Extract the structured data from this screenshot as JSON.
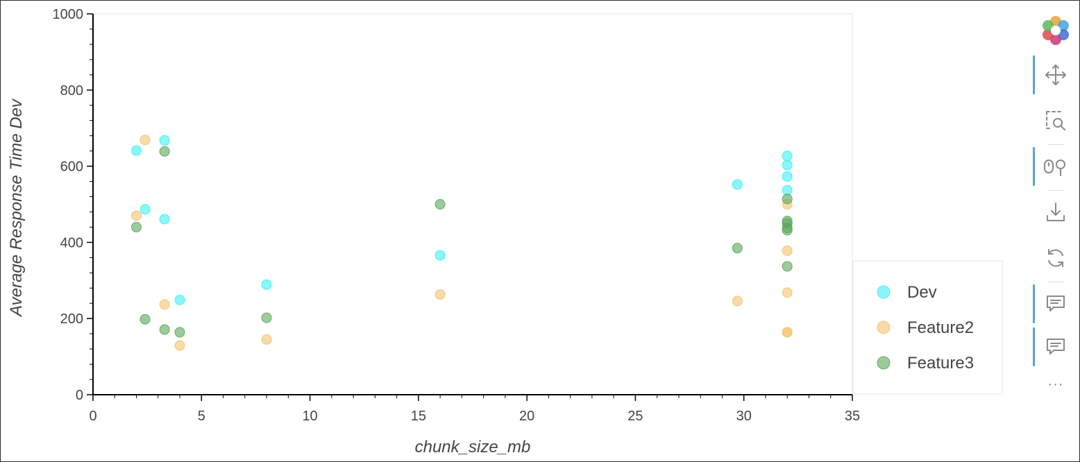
{
  "chart_data": {
    "type": "scatter",
    "title": "",
    "xlabel": "chunk_size_mb",
    "ylabel": "Average Response Time Dev",
    "xlim": [
      0,
      35
    ],
    "ylim": [
      0,
      1000
    ],
    "x_ticks": [
      "0",
      "5",
      "10",
      "15",
      "20",
      "25",
      "30",
      "35"
    ],
    "y_ticks": [
      "0",
      "200",
      "400",
      "600",
      "800",
      "1000"
    ],
    "grid": false,
    "legend_position": "bottom-right outside plot",
    "series": [
      {
        "name": "Dev",
        "color": "#3ef0f4",
        "points": [
          [
            2,
            641
          ],
          [
            2.4,
            487
          ],
          [
            3.3,
            668
          ],
          [
            3.3,
            461
          ],
          [
            4,
            249
          ],
          [
            8,
            289
          ],
          [
            16,
            366
          ],
          [
            29.7,
            552
          ],
          [
            32,
            627
          ],
          [
            32,
            603
          ],
          [
            32,
            573
          ],
          [
            32,
            537
          ]
        ]
      },
      {
        "name": "Feature2",
        "color": "#f3c36e",
        "points": [
          [
            2,
            470
          ],
          [
            2.4,
            669
          ],
          [
            3.3,
            237
          ],
          [
            4,
            129
          ],
          [
            8,
            145
          ],
          [
            16,
            263
          ],
          [
            29.7,
            246
          ],
          [
            32,
            500
          ],
          [
            32,
            378
          ],
          [
            32,
            268
          ],
          [
            32,
            164
          ],
          [
            32,
            164
          ]
        ]
      },
      {
        "name": "Feature3",
        "color": "#5aa65a",
        "points": [
          [
            2,
            440
          ],
          [
            2.4,
            198
          ],
          [
            3.3,
            639
          ],
          [
            3.3,
            171
          ],
          [
            4,
            164
          ],
          [
            8,
            202
          ],
          [
            16,
            500
          ],
          [
            29.7,
            385
          ],
          [
            32,
            514
          ],
          [
            32,
            456
          ],
          [
            32,
            450
          ],
          [
            32,
            438
          ],
          [
            32,
            432
          ],
          [
            32,
            337
          ]
        ]
      }
    ]
  },
  "toolbar": {
    "tools": [
      {
        "icon": "bokeh-logo-icon",
        "active": false
      },
      {
        "icon": "pan-move-icon",
        "active": true
      },
      {
        "icon": "box-zoom-icon",
        "active": false
      },
      {
        "icon": "wheel-zoom-icon",
        "active": true
      },
      {
        "icon": "save-download-icon",
        "active": false
      },
      {
        "icon": "reset-icon",
        "active": false
      },
      {
        "icon": "hover-tooltip-icon",
        "active": true
      },
      {
        "icon": "hover-tooltip-icon",
        "active": true
      }
    ],
    "more_label": "···"
  }
}
